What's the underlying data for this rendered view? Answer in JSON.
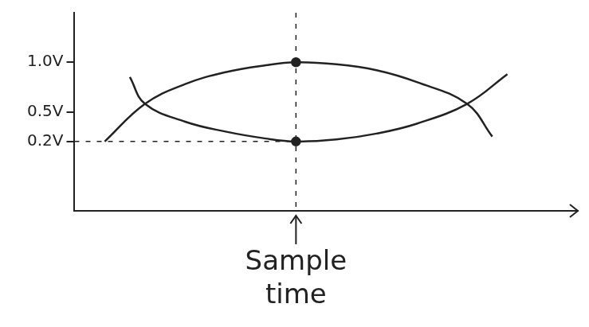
{
  "chart_data": {
    "type": "line",
    "xlim": [
      0,
      100
    ],
    "xticks": [],
    "ylim": [
      -0.5,
      1.5
    ],
    "yticks": [
      {
        "value": 0.2,
        "label": "0.2V"
      },
      {
        "value": 0.5,
        "label": "0.5V"
      },
      {
        "value": 1.0,
        "label": "1.0V"
      }
    ],
    "tick_labels": "y",
    "grid": false,
    "series": [
      {
        "color": "#222222",
        "x": [
          6,
          14,
          22,
          30,
          38,
          44,
          52,
          60,
          68,
          78,
          83
        ],
        "values": [
          0.2,
          0.58,
          0.78,
          0.9,
          0.97,
          1.0,
          0.98,
          0.92,
          0.8,
          0.58,
          0.25
        ]
      },
      {
        "color": "#222222",
        "x": [
          11,
          14,
          22,
          30,
          38,
          44,
          52,
          60,
          68,
          78,
          86
        ],
        "values": [
          0.85,
          0.58,
          0.4,
          0.3,
          0.23,
          0.2,
          0.22,
          0.28,
          0.38,
          0.58,
          0.88
        ]
      }
    ],
    "annotations": [
      {
        "text": "Sample time",
        "x": 44
      }
    ]
  }
}
